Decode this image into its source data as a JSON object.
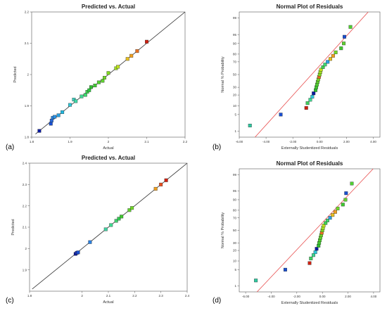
{
  "panel_labels": [
    "(a)",
    "(b)",
    "(c)",
    "(d)"
  ],
  "chart_data": [
    {
      "type": "scatter",
      "title": "Predicted vs. Actual",
      "xlabel": "Actual",
      "ylabel": "Predicted",
      "xlim": [
        1.8,
        2.2
      ],
      "ylim": [
        1.8,
        2.2
      ],
      "xticks": [
        "1.8",
        "1.9",
        "2",
        "2.1",
        "2.2"
      ],
      "yticks": [
        "1.8",
        "1.9",
        "2",
        "2.1",
        "2.2"
      ],
      "reference_line": "y = x",
      "reference_line_color": "#333333",
      "points": [
        {
          "x": 1.82,
          "y": 1.82,
          "color": "#0a1aa0"
        },
        {
          "x": 1.85,
          "y": 1.843,
          "color": "#1a4fd0"
        },
        {
          "x": 1.852,
          "y": 1.853,
          "color": "#2a6ad8"
        },
        {
          "x": 1.855,
          "y": 1.862,
          "color": "#2a80e0"
        },
        {
          "x": 1.86,
          "y": 1.865,
          "color": "#2a90e0"
        },
        {
          "x": 1.87,
          "y": 1.87,
          "color": "#2aa0e0"
        },
        {
          "x": 1.88,
          "y": 1.88,
          "color": "#20b8e0"
        },
        {
          "x": 1.9,
          "y": 1.903,
          "color": "#30c8d8"
        },
        {
          "x": 1.91,
          "y": 1.92,
          "color": "#40d0c0"
        },
        {
          "x": 1.915,
          "y": 1.915,
          "color": "#40d8a8"
        },
        {
          "x": 1.93,
          "y": 1.93,
          "color": "#40d890"
        },
        {
          "x": 1.94,
          "y": 1.935,
          "color": "#40d870"
        },
        {
          "x": 1.945,
          "y": 1.945,
          "color": "#40d050"
        },
        {
          "x": 1.95,
          "y": 1.95,
          "color": "#30c840"
        },
        {
          "x": 1.955,
          "y": 1.96,
          "color": "#30c030"
        },
        {
          "x": 1.965,
          "y": 1.965,
          "color": "#40c830"
        },
        {
          "x": 1.975,
          "y": 1.975,
          "color": "#50d030"
        },
        {
          "x": 1.985,
          "y": 1.98,
          "color": "#60d030"
        },
        {
          "x": 1.99,
          "y": 1.99,
          "color": "#70d828"
        },
        {
          "x": 2.0,
          "y": 2.005,
          "color": "#80d820"
        },
        {
          "x": 2.02,
          "y": 2.02,
          "color": "#a0e020"
        },
        {
          "x": 2.025,
          "y": 2.025,
          "color": "#c0e020"
        },
        {
          "x": 2.05,
          "y": 2.05,
          "color": "#e8c020"
        },
        {
          "x": 2.06,
          "y": 2.06,
          "color": "#f0a020"
        },
        {
          "x": 2.075,
          "y": 2.075,
          "color": "#e87020"
        },
        {
          "x": 2.1,
          "y": 2.105,
          "color": "#d02010"
        }
      ]
    },
    {
      "type": "scatter",
      "title": "Normal Plot of Residuals",
      "xlabel": "Externally Studentized Residuals",
      "ylabel": "Normal % Probability",
      "xlim": [
        -6,
        4.5
      ],
      "xticks": [
        "-6.00",
        "-4.00",
        "-2.00",
        "0.00",
        "2.00",
        "4.00"
      ],
      "yticks": [
        "1",
        "5",
        "10",
        "20",
        "30",
        "50",
        "70",
        "80",
        "90",
        "95",
        "99"
      ],
      "y_scale": "normal probability",
      "reference_line_color": "#e85050",
      "reference_line": [
        [
          -5.2,
          0.25
        ],
        [
          4.0,
          99.75
        ]
      ],
      "points": [
        {
          "x": -5.2,
          "y": 1.8,
          "color": "#30c8a0"
        },
        {
          "x": -2.9,
          "y": 5.0,
          "color": "#1a4fd0"
        },
        {
          "x": -1.0,
          "y": 8.5,
          "color": "#d02010"
        },
        {
          "x": -0.9,
          "y": 12,
          "color": "#40d060"
        },
        {
          "x": -0.7,
          "y": 15,
          "color": "#40d890"
        },
        {
          "x": -0.55,
          "y": 18,
          "color": "#30c8d8"
        },
        {
          "x": -0.45,
          "y": 22,
          "color": "#0a1aa0"
        },
        {
          "x": -0.3,
          "y": 26,
          "color": "#30c030"
        },
        {
          "x": -0.25,
          "y": 30,
          "color": "#40c830"
        },
        {
          "x": -0.2,
          "y": 34,
          "color": "#50d030"
        },
        {
          "x": -0.15,
          "y": 38,
          "color": "#60d030"
        },
        {
          "x": -0.1,
          "y": 42,
          "color": "#70d828"
        },
        {
          "x": -0.05,
          "y": 46,
          "color": "#e87020"
        },
        {
          "x": 0.0,
          "y": 50,
          "color": "#80d820"
        },
        {
          "x": 0.05,
          "y": 54,
          "color": "#a0e020"
        },
        {
          "x": 0.1,
          "y": 58,
          "color": "#c0e020"
        },
        {
          "x": 0.25,
          "y": 62,
          "color": "#40d050"
        },
        {
          "x": 0.4,
          "y": 66,
          "color": "#40d870"
        },
        {
          "x": 0.6,
          "y": 70,
          "color": "#2aa0e0"
        },
        {
          "x": 0.8,
          "y": 74,
          "color": "#e8c020"
        },
        {
          "x": 1.0,
          "y": 78,
          "color": "#f0a020"
        },
        {
          "x": 1.2,
          "y": 82,
          "color": "#70d828"
        },
        {
          "x": 1.6,
          "y": 86,
          "color": "#40c830"
        },
        {
          "x": 1.8,
          "y": 90,
          "color": "#60d030"
        },
        {
          "x": 1.85,
          "y": 94,
          "color": "#1a4fd0"
        },
        {
          "x": 2.3,
          "y": 97.5,
          "color": "#50d030"
        }
      ]
    },
    {
      "type": "scatter",
      "title": "Predicted vs. Actual",
      "xlabel": "Actual",
      "ylabel": "Predicted",
      "xlim": [
        1.8,
        2.4
      ],
      "ylim": [
        1.8,
        2.4
      ],
      "xticks": [
        "1.8",
        "2",
        "2.1",
        "2.2",
        "2.3",
        "2.4"
      ],
      "yticks": [
        "1.9",
        "2",
        "2.1",
        "2.2",
        "2.3",
        "2.4"
      ],
      "reference_line": "y = x",
      "reference_line_color": "#333333",
      "points": [
        {
          "x": 1.975,
          "y": 1.975,
          "color": "#0a1aa0"
        },
        {
          "x": 1.98,
          "y": 1.98,
          "color": "#1a30c0"
        },
        {
          "x": 1.985,
          "y": 1.982,
          "color": "#1a4fd0"
        },
        {
          "x": 2.03,
          "y": 2.03,
          "color": "#2a80e0"
        },
        {
          "x": 2.09,
          "y": 2.09,
          "color": "#40d0a0"
        },
        {
          "x": 2.11,
          "y": 2.11,
          "color": "#40d890"
        },
        {
          "x": 2.13,
          "y": 2.13,
          "color": "#40d070"
        },
        {
          "x": 2.14,
          "y": 2.14,
          "color": "#30c850"
        },
        {
          "x": 2.15,
          "y": 2.15,
          "color": "#40c830"
        },
        {
          "x": 2.18,
          "y": 2.18,
          "color": "#60d030"
        },
        {
          "x": 2.19,
          "y": 2.19,
          "color": "#70d828"
        },
        {
          "x": 2.28,
          "y": 2.28,
          "color": "#f0a020"
        },
        {
          "x": 2.3,
          "y": 2.3,
          "color": "#e85020"
        },
        {
          "x": 2.32,
          "y": 2.32,
          "color": "#d02010"
        }
      ]
    },
    {
      "type": "scatter",
      "title": "Normal Plot of Residuals",
      "xlabel": "Externally Studentized Residuals",
      "ylabel": "Normal % Probability",
      "xlim": [
        -6.5,
        4.5
      ],
      "xticks": [
        "-6.00",
        "-4.00",
        "-2.00",
        "0.00",
        "2.00",
        "4.00"
      ],
      "yticks": [
        "1",
        "5",
        "10",
        "20",
        "30",
        "50",
        "70",
        "80",
        "90",
        "95",
        "99"
      ],
      "y_scale": "normal probability",
      "reference_line_color": "#e85050",
      "reference_line": [
        [
          -5.8,
          0.15
        ],
        [
          4.5,
          99.8
        ]
      ],
      "points": [
        {
          "x": -5.2,
          "y": 1.8,
          "color": "#30c8a0"
        },
        {
          "x": -2.9,
          "y": 5.0,
          "color": "#1a4fd0"
        },
        {
          "x": -1.0,
          "y": 8.5,
          "color": "#d02010"
        },
        {
          "x": -0.9,
          "y": 12,
          "color": "#40d060"
        },
        {
          "x": -0.7,
          "y": 15,
          "color": "#40d890"
        },
        {
          "x": -0.55,
          "y": 18,
          "color": "#30c8d8"
        },
        {
          "x": -0.45,
          "y": 22,
          "color": "#0a1aa0"
        },
        {
          "x": -0.3,
          "y": 26,
          "color": "#30c030"
        },
        {
          "x": -0.25,
          "y": 30,
          "color": "#40c830"
        },
        {
          "x": -0.2,
          "y": 34,
          "color": "#50d030"
        },
        {
          "x": -0.15,
          "y": 38,
          "color": "#60d030"
        },
        {
          "x": -0.1,
          "y": 42,
          "color": "#70d828"
        },
        {
          "x": -0.05,
          "y": 46,
          "color": "#e87020"
        },
        {
          "x": 0.0,
          "y": 50,
          "color": "#80d820"
        },
        {
          "x": 0.05,
          "y": 54,
          "color": "#a0e020"
        },
        {
          "x": 0.1,
          "y": 58,
          "color": "#c0e020"
        },
        {
          "x": 0.25,
          "y": 62,
          "color": "#40d050"
        },
        {
          "x": 0.4,
          "y": 66,
          "color": "#40d870"
        },
        {
          "x": 0.6,
          "y": 70,
          "color": "#2aa0e0"
        },
        {
          "x": 0.8,
          "y": 74,
          "color": "#e8c020"
        },
        {
          "x": 1.0,
          "y": 78,
          "color": "#f0a020"
        },
        {
          "x": 1.2,
          "y": 82,
          "color": "#70d828"
        },
        {
          "x": 1.6,
          "y": 86,
          "color": "#40c830"
        },
        {
          "x": 1.8,
          "y": 90,
          "color": "#60d030"
        },
        {
          "x": 1.85,
          "y": 94,
          "color": "#1a4fd0"
        },
        {
          "x": 2.3,
          "y": 97.5,
          "color": "#50d030"
        }
      ]
    }
  ]
}
